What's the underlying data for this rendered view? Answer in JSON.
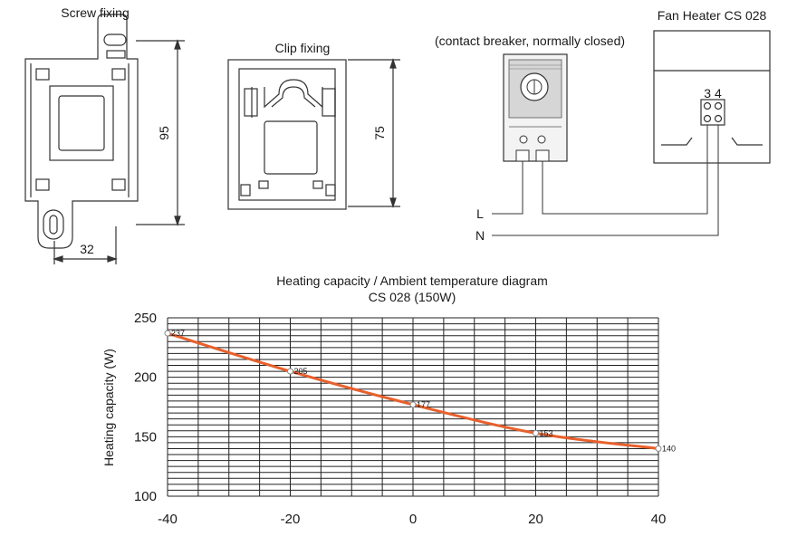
{
  "screw_fixing": {
    "title": "Screw fixing",
    "dim_height": "95",
    "dim_width": "32"
  },
  "clip_fixing": {
    "title": "Clip fixing",
    "dim_height": "75"
  },
  "thermostat": {
    "caption": "(contact breaker, normally closed)"
  },
  "fan_heater": {
    "title": "Fan Heater CS 028",
    "terminal_labels": "3 4"
  },
  "wiring": {
    "line_label": "L",
    "neutral_label": "N"
  },
  "diagram": {
    "title_line1": "Heating capacity / Ambient temperature diagram",
    "title_line2": "CS 028 (150W)"
  },
  "chart_data": {
    "type": "line",
    "title": "Heating capacity / Ambient temperature diagram",
    "subtitle": "CS 028 (150W)",
    "ylabel": "Heating capacity (W)",
    "xlabel": "",
    "xlim": [
      -40,
      40
    ],
    "ylim": [
      100,
      250
    ],
    "x_ticks": [
      -40,
      -20,
      0,
      20,
      40
    ],
    "y_ticks": [
      100,
      150,
      200,
      250
    ],
    "grid": true,
    "line_color": "#e8602c",
    "series": [
      {
        "x": [
          -40,
          -20,
          0,
          20,
          40
        ],
        "values": [
          237,
          205,
          177,
          153,
          140
        ]
      }
    ],
    "point_labels": [
      "237",
      "205",
      "177",
      "153",
      "140"
    ]
  }
}
